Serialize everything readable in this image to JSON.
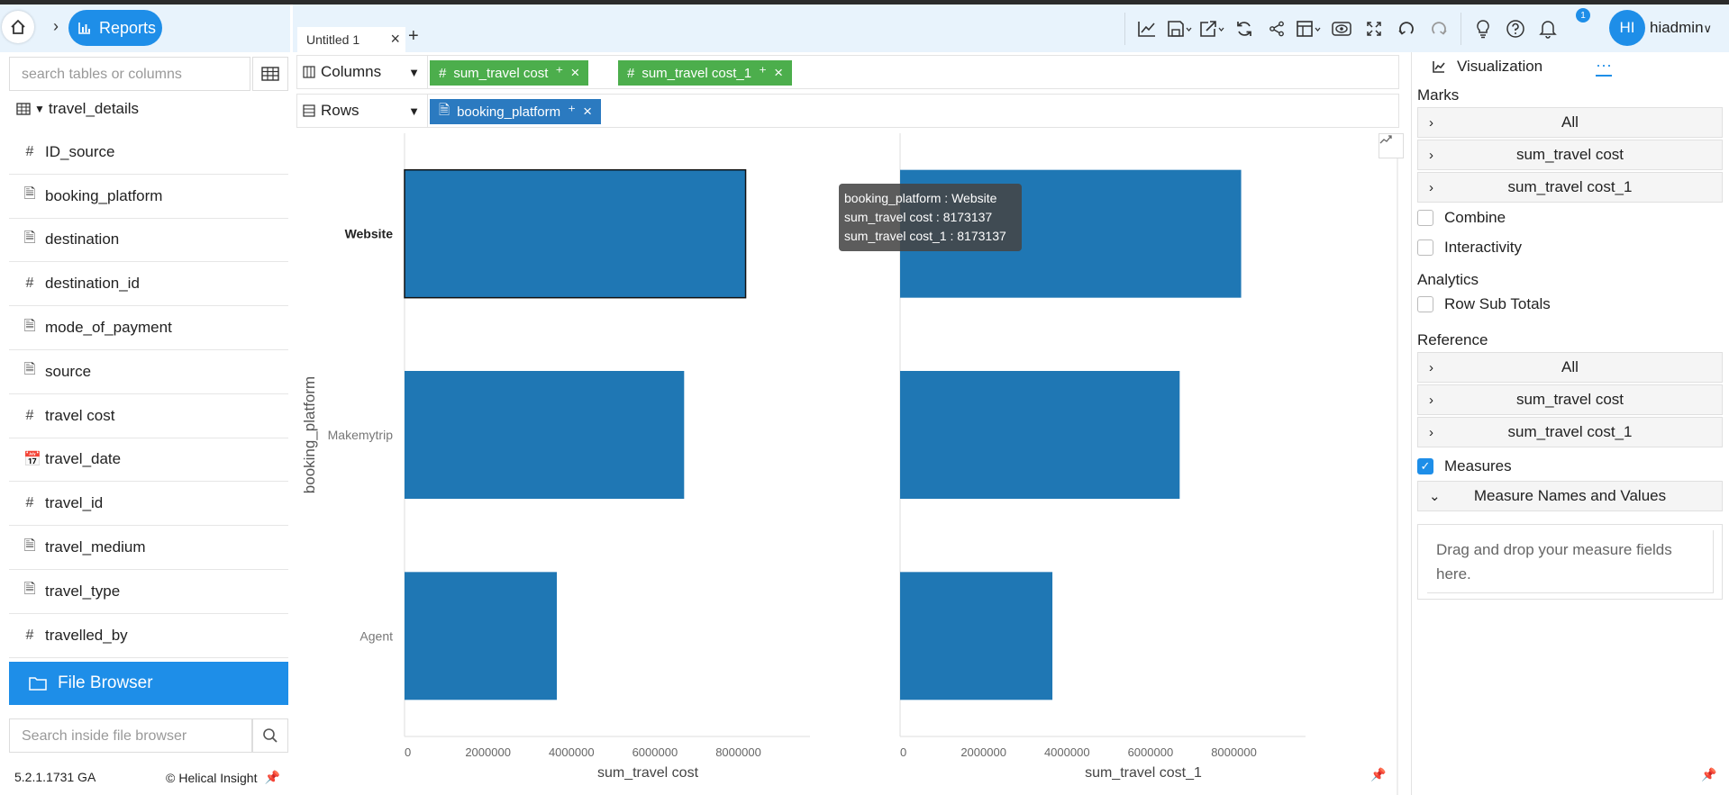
{
  "nav": {
    "reports_label": "Reports"
  },
  "left_panel": {
    "search_placeholder": "search tables or columns",
    "table_name": "travel_details",
    "fields": [
      {
        "name": "ID_source",
        "type_icon": "#"
      },
      {
        "name": "booking_platform",
        "type_icon": "🗎"
      },
      {
        "name": "destination",
        "type_icon": "🗎"
      },
      {
        "name": "destination_id",
        "type_icon": "#"
      },
      {
        "name": "mode_of_payment",
        "type_icon": "🗎"
      },
      {
        "name": "source",
        "type_icon": "🗎"
      },
      {
        "name": "travel cost",
        "type_icon": "#"
      },
      {
        "name": "travel_date",
        "type_icon": "📅"
      },
      {
        "name": "travel_id",
        "type_icon": "#"
      },
      {
        "name": "travel_medium",
        "type_icon": "🗎"
      },
      {
        "name": "travel_type",
        "type_icon": "🗎"
      },
      {
        "name": "travelled_by",
        "type_icon": "#"
      }
    ],
    "file_browser_label": "File Browser",
    "file_search_placeholder": "Search inside file browser",
    "version": "5.2.1.1731 GA",
    "brand": "Helical Insight"
  },
  "toolbar": {
    "tab_label": "Untitled 1",
    "add_tab": "+",
    "notification_count": "1",
    "avatar_initials": "HI",
    "username": "hiadmin"
  },
  "shelves": {
    "columns_label": "Columns",
    "rows_label": "Rows",
    "column_pills": [
      "sum_travel cost",
      "sum_travel cost_1"
    ],
    "row_pills": [
      "booking_platform"
    ]
  },
  "tooltip": {
    "line1": "booking_platform : Website",
    "line2": "sum_travel cost : 8173137",
    "line3": "sum_travel cost_1 : 8173137"
  },
  "chart_data": {
    "type": "bar",
    "orientation": "horizontal",
    "categories": [
      "Website",
      "Makemytrip",
      "Agent"
    ],
    "ylabel": "booking_platform",
    "panels": [
      {
        "xlabel": "sum_travel cost",
        "xlim": [
          0,
          9500000
        ],
        "ticks": [
          "0",
          "2000000",
          "4000000",
          "6000000",
          "8000000"
        ],
        "tick_values": [
          0,
          2000000,
          4000000,
          6000000,
          8000000
        ],
        "values": [
          8173137,
          6700000,
          3650000
        ]
      },
      {
        "xlabel": "sum_travel cost_1",
        "xlim": [
          0,
          9500000
        ],
        "ticks": [
          "0",
          "2000000",
          "4000000",
          "6000000",
          "8000000"
        ],
        "tick_values": [
          0,
          2000000,
          4000000,
          6000000,
          8000000
        ],
        "values": [
          8173137,
          6700000,
          3650000
        ]
      }
    ],
    "bar_color": "#1f77b4",
    "highlighted_category": "Website"
  },
  "right_panel": {
    "tab_label": "Visualization",
    "more_label": "···",
    "marks_title": "Marks",
    "marks_items": [
      "All",
      "sum_travel cost",
      "sum_travel cost_1"
    ],
    "combine_label": "Combine",
    "interactivity_label": "Interactivity",
    "analytics_title": "Analytics",
    "row_subtotals_label": "Row Sub Totals",
    "reference_title": "Reference",
    "reference_items": [
      "All",
      "sum_travel cost",
      "sum_travel cost_1"
    ],
    "measures_label": "Measures",
    "measure_names_label": "Measure Names and Values",
    "dropzone_text": "Drag and drop your measure fields here."
  },
  "colors": {
    "accent": "#1e8ee8",
    "pill_green": "#4cae4c",
    "pill_blue": "#2b7ac0",
    "bar": "#1f77b4"
  }
}
